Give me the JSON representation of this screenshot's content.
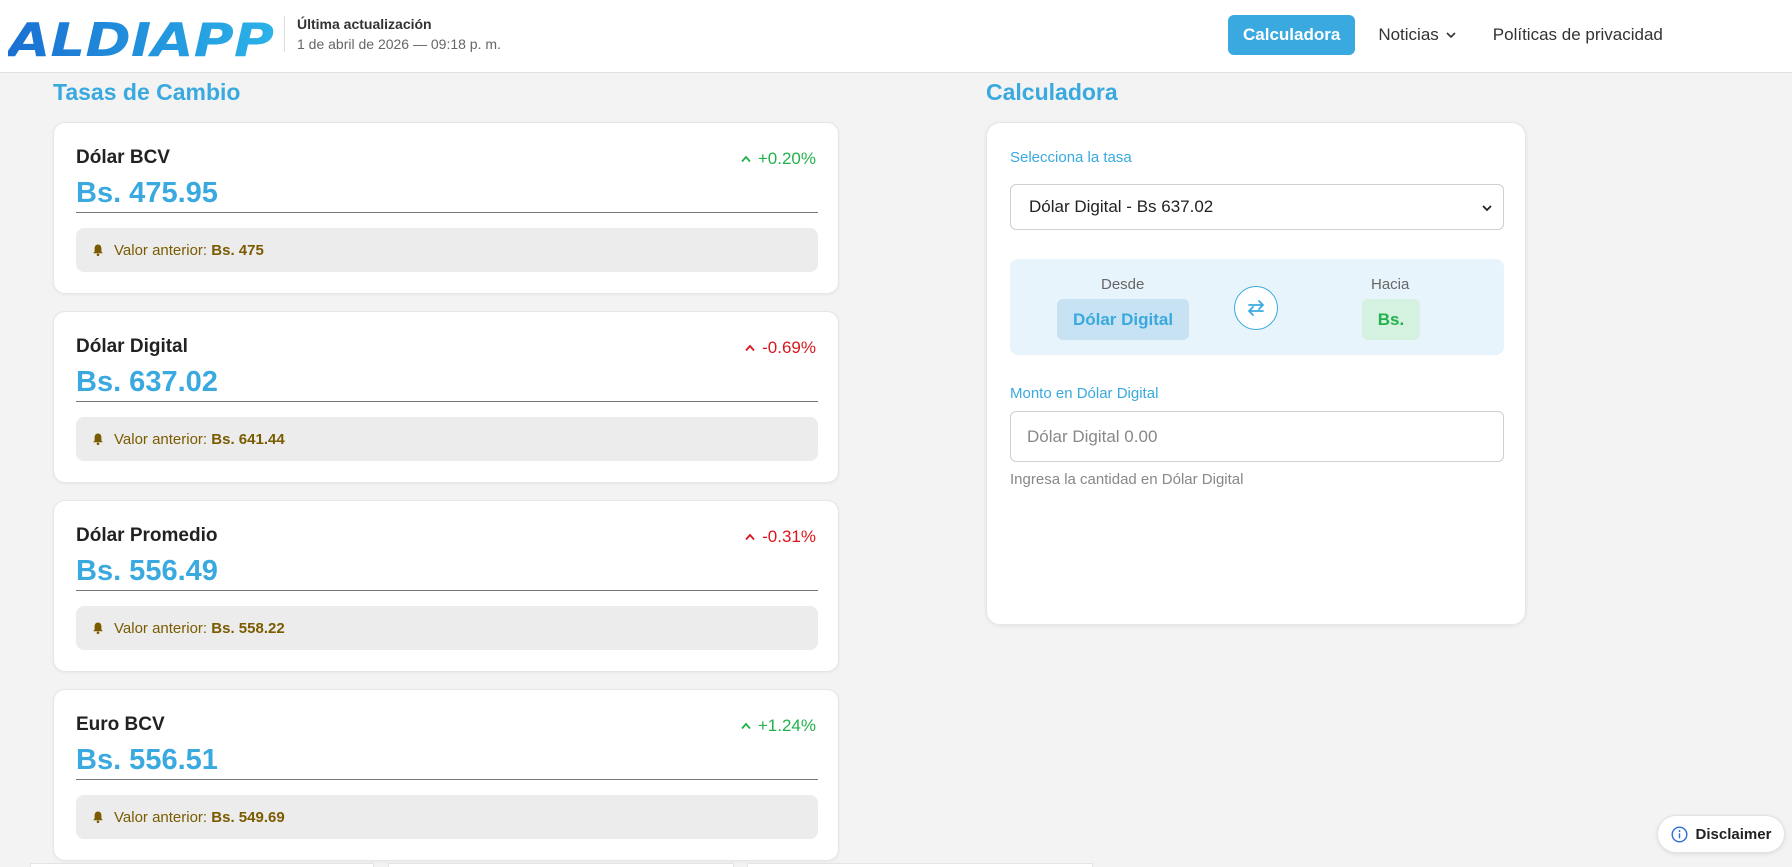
{
  "header": {
    "brand": "ALDIAPP",
    "update_title": "Última actualización",
    "update_date": "1 de abril de 2026 — 09:18 p. m.",
    "nav": {
      "calculadora": "Calculadora",
      "noticias": "Noticias",
      "politicas": "Políticas de privacidad"
    }
  },
  "rates": {
    "title": "Tasas de Cambio",
    "prev_label": "Valor anterior:",
    "items": [
      {
        "name": "Dólar BCV",
        "change": "+0.20%",
        "trend": "up",
        "value": "Bs. 475.95",
        "previous": "Bs. 475"
      },
      {
        "name": "Dólar Digital",
        "change": "-0.69%",
        "trend": "down",
        "value": "Bs. 637.02",
        "previous": "Bs. 641.44"
      },
      {
        "name": "Dólar Promedio",
        "change": "-0.31%",
        "trend": "down",
        "value": "Bs. 556.49",
        "previous": "Bs. 558.22"
      },
      {
        "name": "Euro BCV",
        "change": "+1.24%",
        "trend": "up",
        "value": "Bs. 556.51",
        "previous": "Bs. 549.69"
      }
    ]
  },
  "calculator": {
    "title": "Calculadora",
    "select_label": "Selecciona la tasa",
    "selected_rate": "Dólar Digital - Bs 637.02",
    "from_label": "Desde",
    "from_value": "Dólar Digital",
    "to_label": "Hacia",
    "to_value": "Bs.",
    "amount_label": "Monto en Dólar Digital",
    "amount_placeholder": "Dólar Digital 0.00",
    "help": "Ingresa la cantidad en Dólar Digital"
  },
  "disclaimer": "Disclaimer",
  "colors": {
    "accent": "#39a9df",
    "up": "#22b14c",
    "down": "#d9161c",
    "previous_text": "#7a5b00"
  }
}
